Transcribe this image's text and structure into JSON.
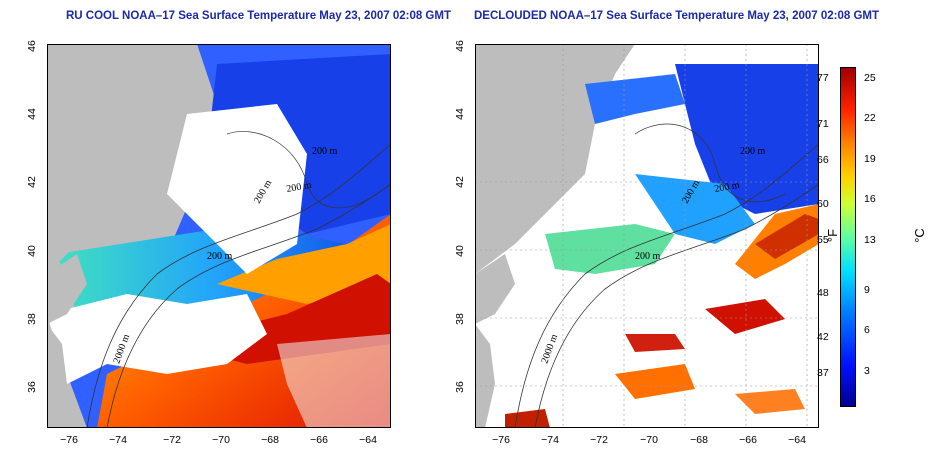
{
  "panels": [
    {
      "title": "RU COOL NOAA–17 Sea Surface Temperature May 23, 2007 02:08 GMT",
      "contour_labels": [
        "200 m",
        "200 m",
        "200 m",
        "2000 m",
        "200 m"
      ]
    },
    {
      "title": "DECLOUDED NOAA–17 Sea Surface Temperature May 23, 2007 02:08 GMT",
      "contour_labels": [
        "200 m",
        "200 m",
        "200 m",
        "2000 m",
        "200 m"
      ]
    }
  ],
  "axes": {
    "lat_ticks": [
      "46",
      "44",
      "42",
      "40",
      "38",
      "36"
    ],
    "lon_ticks": [
      "−76",
      "−74",
      "−72",
      "−70",
      "−68",
      "−66",
      "−64"
    ]
  },
  "colorbar": {
    "fahrenheit_ticks": [
      "77",
      "71",
      "66",
      "60",
      "55",
      "48",
      "42",
      "37"
    ],
    "celsius_ticks": [
      "25",
      "22",
      "19",
      "16",
      "13",
      "9",
      "6",
      "3"
    ],
    "fahrenheit_unit": "°F",
    "celsius_unit": "°C"
  }
}
